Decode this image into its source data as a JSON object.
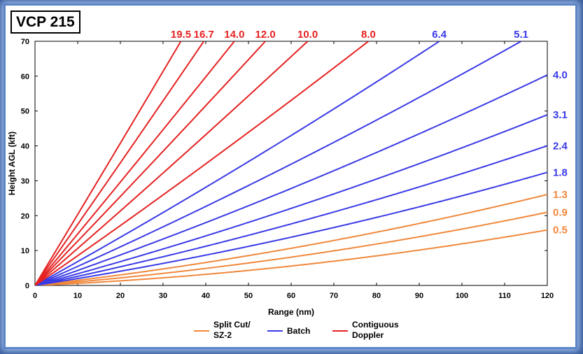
{
  "chart_data": {
    "type": "line",
    "title": "VCP 215",
    "xlabel": "Range (nm)",
    "ylabel": "Height AGL (kft)",
    "xlim": [
      0,
      120
    ],
    "ylim": [
      0,
      70
    ],
    "xticks": [
      0,
      10,
      20,
      30,
      40,
      50,
      60,
      70,
      80,
      90,
      100,
      110,
      120
    ],
    "yticks": [
      0,
      10,
      20,
      30,
      40,
      50,
      60,
      70
    ],
    "grid": false,
    "legend_position": "bottom",
    "legend": [
      {
        "label": "Split Cut/\nSZ-2",
        "color": "#f0883c"
      },
      {
        "label": "Batch",
        "color": "#3a3ae6"
      },
      {
        "label": "Contiguous\nDoppler",
        "color": "#e52222"
      }
    ],
    "series": [
      {
        "name": "0.5",
        "group": "Split Cut/SZ-2",
        "color": "#f0883c",
        "elevation_deg": 0.5
      },
      {
        "name": "0.9",
        "group": "Split Cut/SZ-2",
        "color": "#f0883c",
        "elevation_deg": 0.9
      },
      {
        "name": "1.3",
        "group": "Split Cut/SZ-2",
        "color": "#f0883c",
        "elevation_deg": 1.3
      },
      {
        "name": "1.8",
        "group": "Batch",
        "color": "#3a3ae6",
        "elevation_deg": 1.8
      },
      {
        "name": "2.4",
        "group": "Batch",
        "color": "#3a3ae6",
        "elevation_deg": 2.4
      },
      {
        "name": "3.1",
        "group": "Batch",
        "color": "#3a3ae6",
        "elevation_deg": 3.1
      },
      {
        "name": "4.0",
        "group": "Batch",
        "color": "#3a3ae6",
        "elevation_deg": 4.0
      },
      {
        "name": "5.1",
        "group": "Batch",
        "color": "#3a3ae6",
        "elevation_deg": 5.1
      },
      {
        "name": "6.4",
        "group": "Batch",
        "color": "#3a3ae6",
        "elevation_deg": 6.4
      },
      {
        "name": "8.0",
        "group": "Contiguous Doppler",
        "color": "#e52222",
        "elevation_deg": 8.0
      },
      {
        "name": "10.0",
        "group": "Contiguous Doppler",
        "color": "#e52222",
        "elevation_deg": 10.0
      },
      {
        "name": "12.0",
        "group": "Contiguous Doppler",
        "color": "#e52222",
        "elevation_deg": 12.0
      },
      {
        "name": "14.0",
        "group": "Contiguous Doppler",
        "color": "#e52222",
        "elevation_deg": 14.0
      },
      {
        "name": "16.7",
        "group": "Contiguous Doppler",
        "color": "#e52222",
        "elevation_deg": 16.7
      },
      {
        "name": "19.5",
        "group": "Contiguous Doppler",
        "color": "#e52222",
        "elevation_deg": 19.5
      }
    ]
  }
}
